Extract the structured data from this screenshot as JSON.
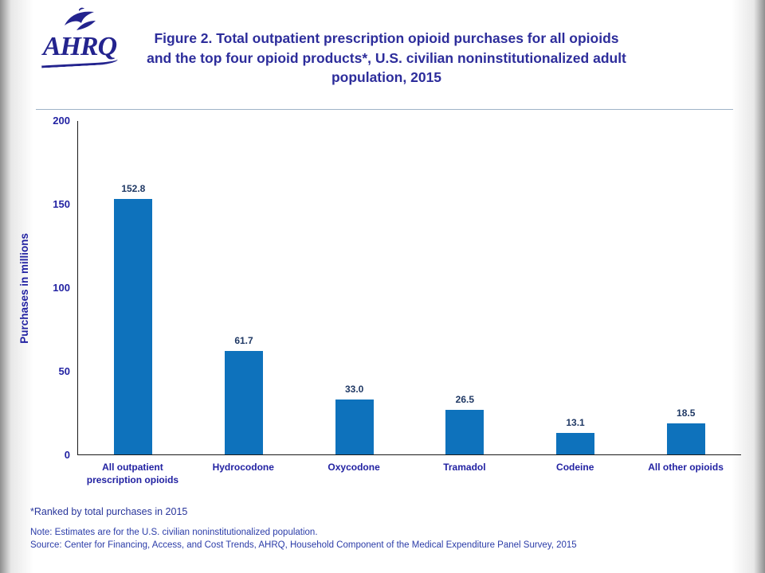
{
  "header": {
    "logo_text": "AHRQ",
    "title": "Figure 2. Total outpatient prescription opioid purchases for all opioids and the top four opioid products*, U.S. civilian noninstitutionalized adult population, 2015"
  },
  "chart_data": {
    "type": "bar",
    "title": "Figure 2. Total outpatient prescription opioid purchases for all opioids and the top four opioid products*, U.S. civilian noninstitutionalized adult population, 2015",
    "categories": [
      "All outpatient\nprescription opioids",
      "Hydrocodone",
      "Oxycodone",
      "Tramadol",
      "Codeine",
      "All other opioids"
    ],
    "values": [
      152.8,
      61.7,
      33.0,
      26.5,
      13.1,
      18.5
    ],
    "value_labels": [
      "152.8",
      "61.7",
      "33.0",
      "26.5",
      "13.1",
      "18.5"
    ],
    "xlabel": "",
    "ylabel": "Purchases in millions",
    "ylim": [
      0,
      200
    ],
    "yticks": [
      0,
      50,
      100,
      150,
      200
    ],
    "grid": false,
    "legend": false
  },
  "footnotes": {
    "ranked": "*Ranked by total purchases in 2015",
    "note": "Note: Estimates are for the U.S. civilian noninstitutionalized population.",
    "source": "Source: Center for Financing, Access, and Cost Trends, AHRQ, Household Component of the Medical Expenditure Panel Survey, 2015"
  },
  "colors": {
    "bar": "#0e72bc",
    "title": "#2d2d9b",
    "axis_labels": "#2222a2",
    "value_labels": "#1f3864",
    "footnote": "#28359b",
    "note": "#2b3ca8",
    "logo": "#23238e"
  }
}
